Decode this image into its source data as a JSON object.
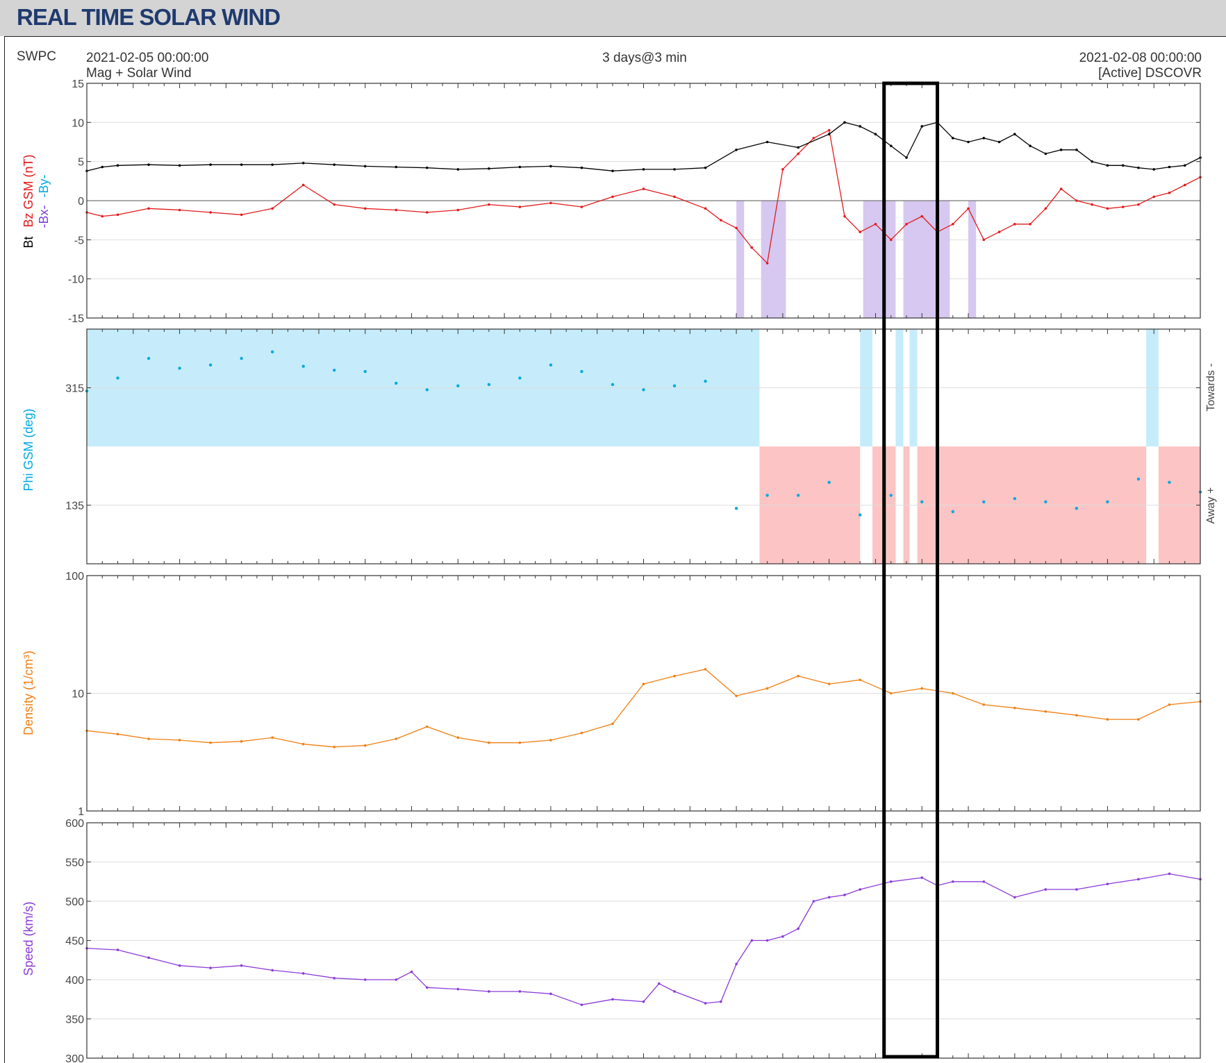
{
  "page": {
    "title": "REAL TIME SOLAR WIND"
  },
  "header": {
    "org": "SWPC",
    "start": "2021-02-05 00:00:00",
    "subtitle": "Mag + Solar Wind",
    "span": "3 days@3 min",
    "end": "2021-02-08 00:00:00",
    "source": "[Active] DSCOVR"
  },
  "colors": {
    "bt": "#000000",
    "bz": "#e41a1c",
    "bx": "#7b3fd0",
    "by": "#00a9e0",
    "phi_towards_fill": "#c6ecfb",
    "phi_away_fill": "#fcc4c4",
    "density": "#f07f12",
    "speed": "#8a3ad8",
    "highlight_box": "#000000"
  },
  "chart_data": [
    {
      "type": "line",
      "panel": "mag",
      "ylabel_parts": [
        {
          "text": "Bt",
          "color": "#000000"
        },
        {
          "text": "Bz GSM (nT)",
          "color": "#e41a1c"
        },
        {
          "text": "-Bx-",
          "color": "#7b3fd0"
        },
        {
          "text": "-By-",
          "color": "#00a9e0"
        }
      ],
      "ylim": [
        -15,
        15
      ],
      "yticks": [
        "15",
        "10",
        "5",
        "0",
        "-5",
        "-10",
        "-15"
      ],
      "xlim_hours": [
        0,
        72
      ],
      "grid": true,
      "series": [
        {
          "name": "Bt",
          "x": [
            0,
            1,
            2,
            4,
            6,
            8,
            10,
            12,
            14,
            16,
            18,
            20,
            22,
            24,
            26,
            28,
            30,
            32,
            34,
            36,
            38,
            40,
            42,
            44,
            46,
            48,
            49,
            50,
            51,
            52,
            53,
            54,
            55,
            56,
            57,
            58,
            59,
            60,
            61,
            62,
            63,
            64,
            65,
            66,
            67,
            68,
            69,
            70,
            71,
            72
          ],
          "y": [
            3.8,
            4.3,
            4.5,
            4.6,
            4.5,
            4.6,
            4.6,
            4.6,
            4.8,
            4.6,
            4.4,
            4.3,
            4.2,
            4.0,
            4.1,
            4.3,
            4.4,
            4.2,
            3.8,
            4.0,
            4.0,
            4.2,
            6.5,
            7.5,
            6.8,
            8.5,
            10.0,
            9.5,
            8.5,
            7.0,
            5.5,
            9.5,
            10.0,
            8.0,
            7.5,
            8.0,
            7.5,
            8.5,
            7.0,
            6.0,
            6.5,
            6.5,
            5.0,
            4.5,
            4.5,
            4.2,
            4.0,
            4.3,
            4.5,
            5.5
          ]
        },
        {
          "name": "Bz GSM",
          "x": [
            0,
            1,
            2,
            4,
            6,
            8,
            10,
            12,
            14,
            16,
            18,
            20,
            22,
            24,
            26,
            28,
            30,
            32,
            34,
            36,
            38,
            40,
            41,
            42,
            43,
            44,
            45,
            46,
            47,
            48,
            49,
            50,
            51,
            52,
            53,
            54,
            55,
            56,
            57,
            58,
            59,
            60,
            61,
            62,
            63,
            64,
            65,
            66,
            67,
            68,
            69,
            70,
            71,
            72
          ],
          "y": [
            -1.5,
            -2.0,
            -1.8,
            -1.0,
            -1.2,
            -1.5,
            -1.8,
            -1.0,
            2.0,
            -0.5,
            -1.0,
            -1.2,
            -1.5,
            -1.2,
            -0.5,
            -0.8,
            -0.3,
            -0.8,
            0.5,
            1.5,
            0.5,
            -1.0,
            -2.5,
            -3.5,
            -6.0,
            -8.0,
            4.0,
            6.0,
            8.0,
            9.0,
            -2.0,
            -4.0,
            -3.0,
            -5.0,
            -3.0,
            -2.0,
            -4.0,
            -3.0,
            -1.0,
            -5.0,
            -4.0,
            -3.0,
            -3.0,
            -1.0,
            1.5,
            0.0,
            -0.5,
            -1.0,
            -0.8,
            -0.5,
            0.5,
            1.0,
            2.0,
            3.0
          ]
        }
      ]
    },
    {
      "type": "scatter",
      "panel": "phi",
      "ylabel": "Phi GSM (deg)",
      "ylim": [
        45,
        405
      ],
      "yticks": [
        "315",
        "135"
      ],
      "right_labels": [
        "Towards -",
        "Away +"
      ],
      "xlim_hours": [
        0,
        72
      ],
      "grid": true,
      "series": [
        {
          "name": "Phi",
          "x": [
            0,
            2,
            4,
            6,
            8,
            10,
            12,
            14,
            16,
            18,
            20,
            22,
            24,
            26,
            28,
            30,
            32,
            34,
            36,
            38,
            40,
            42,
            44,
            46,
            48,
            50,
            52,
            54,
            56,
            58,
            60,
            62,
            64,
            66,
            68,
            70,
            72
          ],
          "y": [
            310,
            330,
            360,
            345,
            350,
            360,
            370,
            348,
            342,
            340,
            322,
            312,
            318,
            320,
            330,
            350,
            340,
            320,
            312,
            318,
            325,
            130,
            150,
            150,
            170,
            120,
            150,
            140,
            125,
            140,
            145,
            140,
            130,
            140,
            175,
            170,
            155
          ]
        }
      ]
    },
    {
      "type": "line",
      "panel": "density",
      "ylabel": "Density (1/cm³)",
      "ylim": [
        1,
        100
      ],
      "yscale": "log",
      "yticks": [
        "100",
        "10",
        "1"
      ],
      "xlim_hours": [
        0,
        72
      ],
      "grid": true,
      "series": [
        {
          "name": "Density",
          "x": [
            0,
            2,
            4,
            6,
            8,
            10,
            12,
            14,
            16,
            18,
            20,
            22,
            24,
            26,
            28,
            30,
            32,
            34,
            36,
            38,
            40,
            42,
            44,
            46,
            48,
            50,
            52,
            54,
            56,
            58,
            60,
            62,
            64,
            66,
            68,
            70,
            72
          ],
          "y": [
            4.8,
            4.5,
            4.1,
            4.0,
            3.8,
            3.9,
            4.2,
            3.7,
            3.5,
            3.6,
            4.1,
            5.2,
            4.2,
            3.8,
            3.8,
            4.0,
            4.6,
            5.5,
            12.0,
            14.0,
            16.0,
            9.5,
            11.0,
            14.0,
            12.0,
            13.0,
            10.0,
            11.0,
            10.0,
            8.0,
            7.5,
            7.0,
            6.5,
            6.0,
            6.0,
            8.0,
            8.5
          ]
        }
      ]
    },
    {
      "type": "line",
      "panel": "speed",
      "ylabel": "Speed (km/s)",
      "ylim": [
        300,
        600
      ],
      "yticks": [
        "600",
        "550",
        "500",
        "450",
        "400",
        "350",
        "300"
      ],
      "xlim_hours": [
        0,
        72
      ],
      "grid": true,
      "series": [
        {
          "name": "Speed",
          "x": [
            0,
            2,
            4,
            6,
            8,
            10,
            12,
            14,
            16,
            18,
            20,
            21,
            22,
            24,
            26,
            28,
            30,
            32,
            34,
            36,
            37,
            38,
            40,
            41,
            42,
            43,
            44,
            45,
            46,
            47,
            48,
            49,
            50,
            52,
            54,
            55,
            56,
            58,
            60,
            62,
            64,
            66,
            68,
            70,
            72
          ],
          "y": [
            440,
            438,
            428,
            418,
            415,
            418,
            412,
            408,
            402,
            400,
            400,
            410,
            390,
            388,
            385,
            385,
            382,
            368,
            375,
            372,
            395,
            385,
            370,
            372,
            420,
            450,
            450,
            455,
            465,
            500,
            505,
            508,
            515,
            525,
            530,
            520,
            525,
            525,
            505,
            515,
            515,
            522,
            528,
            535,
            528
          ]
        }
      ]
    }
  ]
}
